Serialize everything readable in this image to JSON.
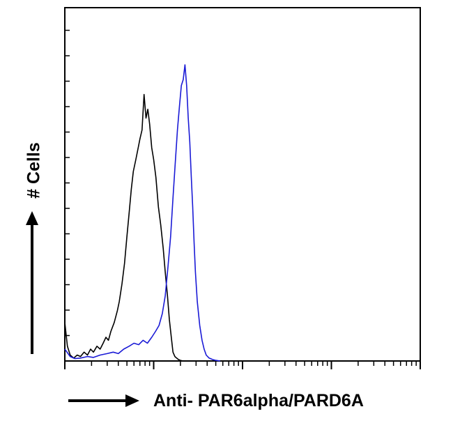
{
  "chart_data": {
    "type": "line",
    "title": "",
    "xlabel": "Anti- PAR6alpha/PARD6A",
    "ylabel": "# Cells",
    "x_scale": "log",
    "xlim": [
      1,
      10000
    ],
    "ylim": [
      0,
      1
    ],
    "grid": false,
    "legend": "none",
    "series": [
      {
        "color": "#000000",
        "x": [
          1.0,
          1.07,
          1.15,
          1.26,
          1.38,
          1.5,
          1.65,
          1.8,
          1.95,
          2.1,
          2.3,
          2.5,
          2.7,
          2.9,
          3.1,
          3.3,
          3.6,
          3.9,
          4.1,
          4.4,
          4.7,
          5.0,
          5.3,
          5.6,
          5.9,
          6.3,
          6.7,
          7.0,
          7.4,
          7.8,
          8.2,
          8.6,
          9.0,
          9.5,
          10.0,
          10.6,
          11.3,
          12.0,
          12.8,
          13.5,
          14.3,
          15.0,
          15.8,
          16.5,
          17.3,
          18.1,
          19.0,
          20.0,
          21.5
        ],
        "y": [
          0.13,
          0.05,
          0.02,
          0.01,
          0.02,
          0.015,
          0.03,
          0.02,
          0.04,
          0.03,
          0.05,
          0.04,
          0.06,
          0.08,
          0.07,
          0.1,
          0.13,
          0.17,
          0.2,
          0.26,
          0.33,
          0.42,
          0.5,
          0.58,
          0.64,
          0.68,
          0.72,
          0.75,
          0.78,
          0.9,
          0.82,
          0.85,
          0.8,
          0.72,
          0.68,
          0.62,
          0.52,
          0.46,
          0.38,
          0.3,
          0.22,
          0.14,
          0.08,
          0.03,
          0.015,
          0.01,
          0.005,
          0.002,
          0.0
        ]
      },
      {
        "color": "#1a1ad6",
        "x": [
          1.0,
          1.15,
          1.3,
          1.5,
          1.8,
          2.1,
          2.5,
          3.0,
          3.5,
          4.0,
          4.6,
          5.3,
          6.0,
          6.8,
          7.6,
          8.5,
          9.5,
          10.5,
          11.5,
          12.5,
          13.5,
          14.5,
          15.5,
          16.5,
          17.5,
          18.5,
          19.5,
          20.5,
          21.5,
          22.5,
          23.5,
          24.5,
          25.5,
          26.5,
          27.5,
          28.5,
          29.5,
          31.0,
          33.0,
          35.0,
          37.0,
          39.0,
          42.0,
          46.0,
          50.0,
          56.0
        ],
        "y": [
          0.04,
          0.015,
          0.008,
          0.01,
          0.015,
          0.012,
          0.02,
          0.025,
          0.03,
          0.025,
          0.04,
          0.05,
          0.06,
          0.055,
          0.07,
          0.06,
          0.08,
          0.1,
          0.12,
          0.16,
          0.22,
          0.32,
          0.42,
          0.55,
          0.67,
          0.78,
          0.86,
          0.93,
          0.95,
          1.0,
          0.93,
          0.82,
          0.74,
          0.62,
          0.52,
          0.4,
          0.3,
          0.2,
          0.12,
          0.07,
          0.04,
          0.02,
          0.01,
          0.005,
          0.002,
          0.0
        ]
      }
    ]
  }
}
